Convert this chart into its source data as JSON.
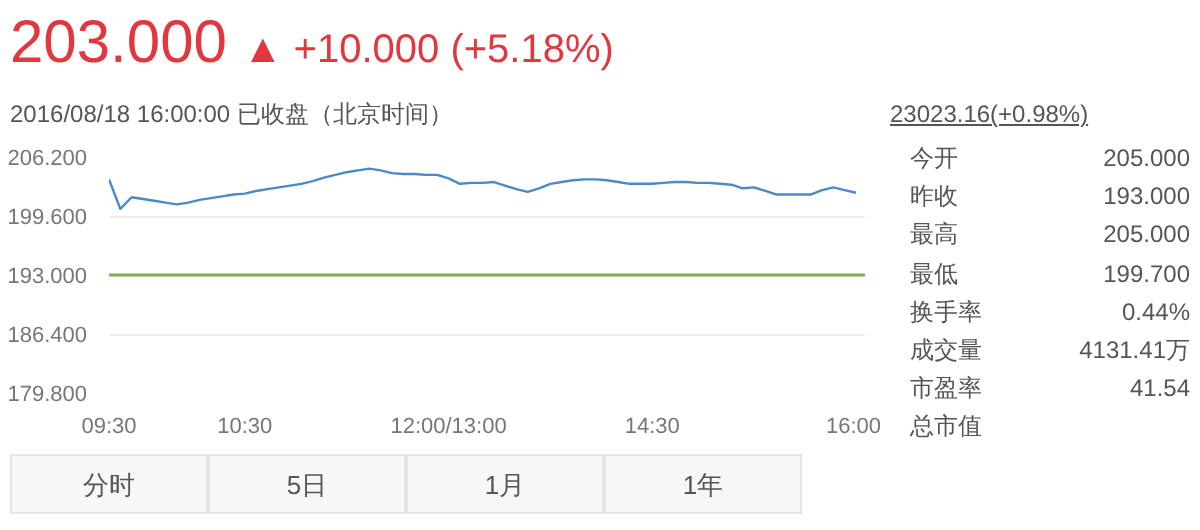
{
  "chart_data": {
    "type": "line",
    "title": "203.000",
    "subtitle": "2016/08/18 16:00:00 已收盘（北京时间）",
    "annotations": [
      "▲ +10.000 (+5.18%)",
      "23023.16(+0.98%)",
      "今开",
      "205.000",
      "昨收",
      "193.000",
      "最高",
      "205.000",
      "最低",
      "199.700",
      "换手率",
      "0.44%",
      "成交量",
      "4131.41万",
      "市盈率",
      "41.54",
      "总市值",
      "分时",
      "5日",
      "1月",
      "1年"
    ],
    "categories": [
      "09:30",
      null,
      null,
      null,
      null,
      null,
      null,
      null,
      null,
      null,
      null,
      null,
      "10:30",
      null,
      null,
      null,
      null,
      null,
      null,
      null,
      null,
      null,
      null,
      null,
      null,
      null,
      null,
      null,
      null,
      null,
      "12:00/13:00",
      null,
      null,
      null,
      null,
      null,
      null,
      null,
      null,
      null,
      null,
      null,
      null,
      null,
      null,
      null,
      null,
      null,
      "14:30",
      null,
      null,
      null,
      null,
      null,
      null,
      null,
      null,
      null,
      null,
      null,
      null,
      null,
      null,
      null,
      null,
      null,
      "16:00"
    ],
    "series": [
      {
        "color": "#4a8ac8",
        "values": [
          203.7,
          200.4,
          201.7,
          201.5,
          201.3,
          201.1,
          200.9,
          201.1,
          201.4,
          201.6,
          201.8,
          202.0,
          202.1,
          202.4,
          202.6,
          202.8,
          203.0,
          203.2,
          203.5,
          203.9,
          204.2,
          204.5,
          204.7,
          204.9,
          204.7,
          204.4,
          204.3,
          204.3,
          204.2,
          204.2,
          203.8,
          203.2,
          203.3,
          203.3,
          203.4,
          203.0,
          202.6,
          202.3,
          202.7,
          203.2,
          203.4,
          203.6,
          203.7,
          203.7,
          203.6,
          203.4,
          203.2,
          203.2,
          203.2,
          203.3,
          203.4,
          203.4,
          203.3,
          203.3,
          203.2,
          203.1,
          202.7,
          202.8,
          202.4,
          202.0,
          202.0,
          202.0,
          202.0,
          202.5,
          202.8,
          202.5,
          202.2
        ]
      }
    ],
    "ylim": [
      179.8,
      206.2
    ],
    "yticks": [
      {
        "value": 179.8,
        "label": "179.800"
      },
      {
        "value": 186.4,
        "label": "186.400"
      },
      {
        "value": 193.0,
        "label": "193.000"
      },
      {
        "value": 199.6,
        "label": "199.600"
      },
      {
        "value": 206.2,
        "label": "206.200"
      }
    ],
    "ref_lines": [
      {
        "axis": "y",
        "value": 193.0,
        "color": "#7ab050"
      }
    ],
    "grid": "y",
    "marker": "none",
    "line_style": "solid"
  }
}
